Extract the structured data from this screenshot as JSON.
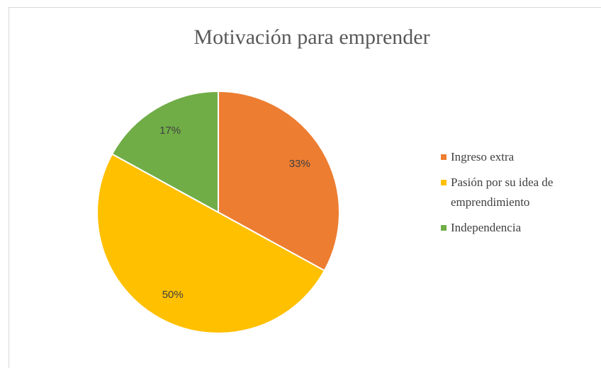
{
  "chart_data": {
    "type": "pie",
    "title": "Motivación para emprender",
    "categories": [
      "Ingreso extra",
      "Pasión por su idea de emprendimiento",
      "Independencia"
    ],
    "values": [
      33,
      50,
      17
    ],
    "value_labels": [
      "33%",
      "50%",
      "17%"
    ],
    "colors": [
      "#ED7D31",
      "#FFC000",
      "#70AD47"
    ],
    "legend": "right"
  }
}
